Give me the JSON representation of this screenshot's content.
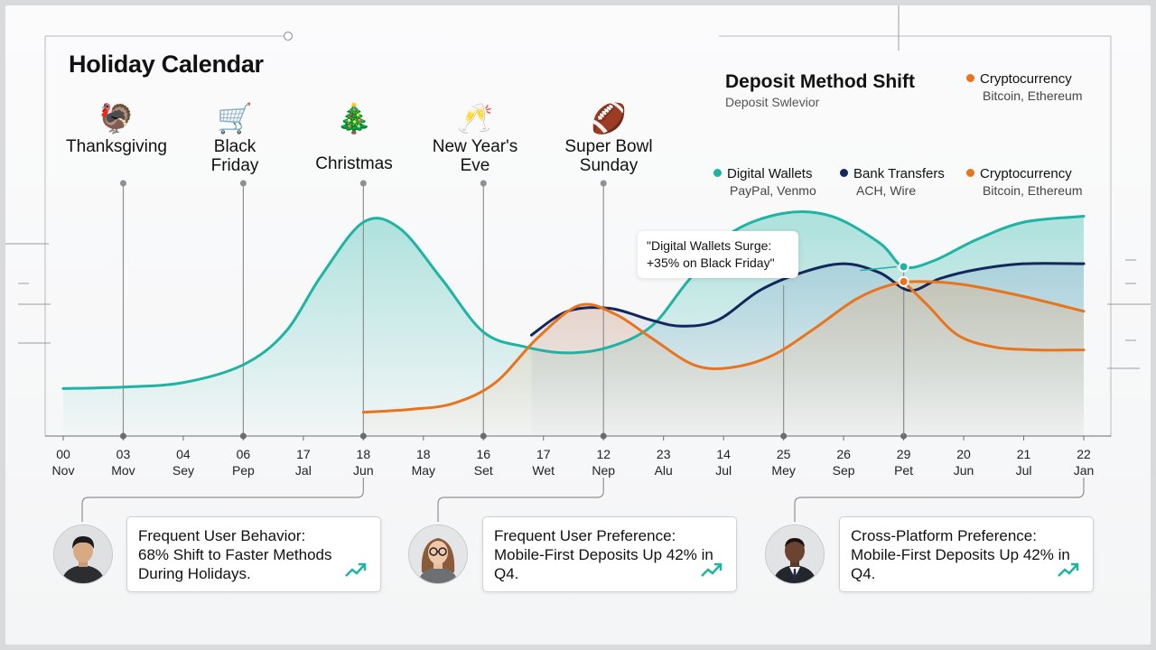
{
  "title": "Holiday Calendar",
  "holidays": [
    {
      "label": "Thanksgiving",
      "icon": "turkey-icon",
      "glyph": "🦃"
    },
    {
      "label": "Black Friday",
      "icon": "shopping-cart-icon",
      "glyph": "🛒"
    },
    {
      "label": "Christmas",
      "icon": "christmas-tree-icon",
      "glyph": "🎄"
    },
    {
      "label": "New Year's Eve",
      "icon": "champagne-icon",
      "glyph": "🥂"
    },
    {
      "label": "Super Bowl Sunday",
      "icon": "football-helmet-icon",
      "glyph": "🏈"
    }
  ],
  "legend": {
    "title": "Deposit Method Shift",
    "subtitle": "Deposit Swlevior",
    "top_item": {
      "name": "Cryptocurrency",
      "sub": "Bitcoin, Ethereum",
      "color": "#e8741e"
    },
    "items": [
      {
        "name": "Digital Wallets",
        "sub": "PayPal, Venmo",
        "color": "#1fb3a5"
      },
      {
        "name": "Bank Transfers",
        "sub": "ACH, Wire",
        "color": "#14275c"
      },
      {
        "name": "Cryptocurrency",
        "sub": "Bitcoin, Ethereum",
        "color": "#e8741e"
      }
    ]
  },
  "callout": {
    "line1": "\"Digital Wallets Surge:",
    "line2": "+35% on Black Friday\""
  },
  "chart_data": {
    "type": "area",
    "categories": [
      [
        "00",
        "Nov"
      ],
      [
        "03",
        "Mov"
      ],
      [
        "04",
        "Sey"
      ],
      [
        "06",
        "Pep"
      ],
      [
        "17",
        "Jal"
      ],
      [
        "18",
        "Jun"
      ],
      [
        "18",
        "May"
      ],
      [
        "16",
        "Set"
      ],
      [
        "17",
        "Wet"
      ],
      [
        "12",
        "Nep"
      ],
      [
        "23",
        "Alu"
      ],
      [
        "14",
        "Jul"
      ],
      [
        "25",
        "Mey"
      ],
      [
        "26",
        "Sep"
      ],
      [
        "29",
        "Pet"
      ],
      [
        "20",
        "Jun"
      ],
      [
        "21",
        "Jul"
      ],
      [
        "22",
        "Jan"
      ]
    ],
    "event_markers": [
      {
        "holiday": "Thanksgiving",
        "index": 1
      },
      {
        "holiday": "Black Friday",
        "index": 3
      },
      {
        "holiday": "Christmas",
        "index": 5
      },
      {
        "holiday": "New Year's Eve",
        "index": 7
      },
      {
        "holiday": "Super Bowl Sunday",
        "index": 9
      },
      {
        "holiday": "",
        "index": 12
      },
      {
        "holiday": "",
        "index": 14
      }
    ],
    "series": [
      {
        "name": "Digital Wallets",
        "color": "#1fb3a5",
        "x": [
          0,
          1,
          2,
          3,
          3.7,
          4.3,
          5,
          5.6,
          6.3,
          7,
          7.7,
          8.4,
          9.1,
          9.8,
          10.4,
          11.1,
          12,
          12.8,
          13.6,
          14,
          14.5,
          15.2,
          16,
          17
        ],
        "y": [
          16,
          16.5,
          18,
          24,
          35,
          54,
          72,
          70,
          53,
          35,
          30,
          28,
          30,
          37,
          52,
          68,
          75,
          74,
          65,
          57,
          59,
          66,
          72,
          74
        ]
      },
      {
        "name": "Bank Transfers",
        "color": "#14275c",
        "x": [
          7.8,
          8.4,
          9.1,
          9.8,
          10.3,
          10.9,
          11.6,
          12.3,
          13,
          13.6,
          14.1,
          14.6,
          15.2,
          16,
          17
        ],
        "y": [
          34,
          42,
          43,
          39,
          37,
          39,
          49,
          55,
          58,
          55,
          49,
          53,
          56,
          58,
          58
        ]
      },
      {
        "name": "Cryptocurrency",
        "color": "#e8741e",
        "x": [
          5,
          5.8,
          6.5,
          7.2,
          7.9,
          8.6,
          9.2,
          9.8,
          10.5,
          11.1,
          11.8,
          12.5,
          13.2,
          13.8,
          14.3,
          15,
          16,
          17
        ],
        "y": [
          8,
          9,
          11,
          18,
          33,
          44,
          41,
          33,
          24,
          23,
          27,
          36,
          46,
          51,
          52,
          51,
          47,
          42
        ]
      },
      {
        "name": "Cryptocurrency (lower)",
        "color": "#e8741e",
        "x": [
          14,
          14.4,
          14.9,
          15.5,
          16.2,
          17
        ],
        "y": [
          52,
          44,
          34,
          30,
          29,
          29
        ]
      }
    ],
    "xlim": [
      0,
      17
    ],
    "ylim": [
      0,
      100
    ],
    "grid": false
  },
  "insights": [
    {
      "avatar": "avatar-young-man",
      "title": "Frequent User Behavior:",
      "body": "68% Shift to Faster Methods During Holidays."
    },
    {
      "avatar": "avatar-woman-glasses",
      "title": "Frequent User Preference:",
      "body": "Mobile-First Deposits Up 42% in Q4."
    },
    {
      "avatar": "avatar-man-suit",
      "title": "Cross-Platform Preference:",
      "body": "Mobile-First Deposits Up 42% in Q4."
    }
  ]
}
